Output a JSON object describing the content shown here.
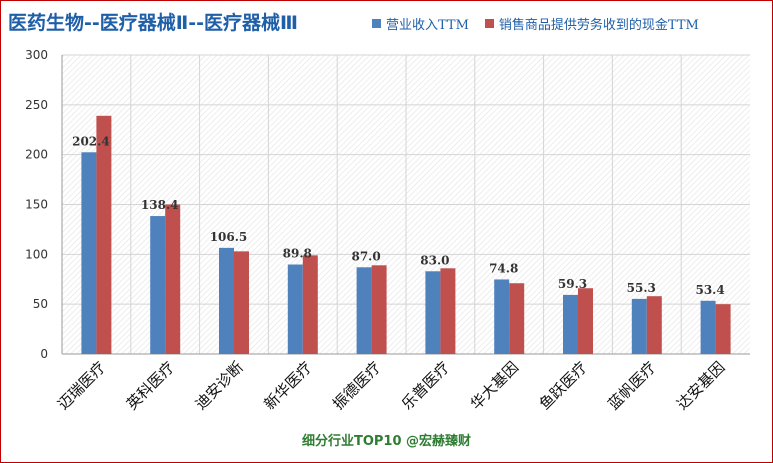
{
  "chart_data": {
    "type": "bar",
    "title": "医药生物--医疗器械Ⅱ--医疗器械Ⅲ",
    "subtitle": "细分行业TOP10 @宏赫臻财",
    "categories": [
      "迈瑞医疗",
      "英科医疗",
      "迪安诊断",
      "新华医疗",
      "振德医疗",
      "乐普医疗",
      "华大基因",
      "鱼跃医疗",
      "蓝帆医疗",
      "达安基因"
    ],
    "series": [
      {
        "name": "营业收入TTM",
        "color": "#4f81bd",
        "values": [
          202.4,
          138.4,
          106.5,
          89.8,
          87.0,
          83.0,
          74.8,
          59.3,
          55.3,
          53.4
        ]
      },
      {
        "name": "销售商品提供劳务收到的现金TTM",
        "color": "#c0504d",
        "values": [
          239,
          150,
          103,
          99,
          89,
          86,
          71,
          66,
          58,
          50
        ]
      }
    ],
    "data_labels": [
      "202.4",
      "138.4",
      "106.5",
      "89.8",
      "87.0",
      "83.0",
      "74.8",
      "59.3",
      "55.3",
      "53.4"
    ],
    "ylim": [
      0,
      300
    ],
    "yticks": [
      "0",
      "50",
      "100",
      "150",
      "200",
      "250",
      "300"
    ],
    "grid": true,
    "legend_position": "top-right"
  }
}
